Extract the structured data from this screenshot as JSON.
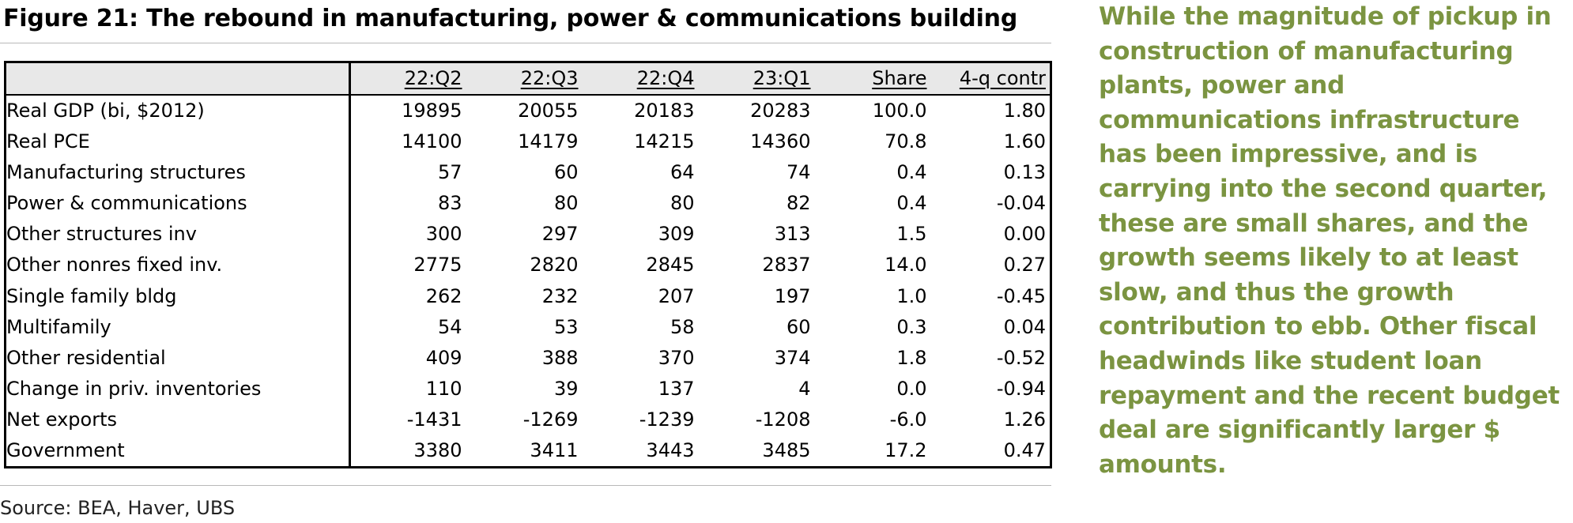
{
  "figure": {
    "title": "Figure 21: The rebound in manufacturing, power & communications building",
    "source": "Source: BEA, Haver, UBS"
  },
  "table": {
    "columns": [
      "22:Q2",
      "22:Q3",
      "22:Q4",
      "23:Q1",
      "Share",
      "4-q contr"
    ],
    "rows": [
      {
        "label": "Real GDP (bi, $2012)",
        "level": 0,
        "values": [
          "19895",
          "20055",
          "20183",
          "20283",
          "100.0",
          "1.80"
        ]
      },
      {
        "label": "Real PCE",
        "level": 1,
        "values": [
          "14100",
          "14179",
          "14215",
          "14360",
          "70.8",
          "1.60"
        ]
      },
      {
        "label": "Manufacturing structures",
        "level": 3,
        "values": [
          "57",
          "60",
          "64",
          "74",
          "0.4",
          "0.13"
        ]
      },
      {
        "label": "Power & communications",
        "level": 3,
        "values": [
          "83",
          "80",
          "80",
          "82",
          "0.4",
          "-0.04"
        ]
      },
      {
        "label": "Other structures inv",
        "level": 3,
        "values": [
          "300",
          "297",
          "309",
          "313",
          "1.5",
          "0.00"
        ]
      },
      {
        "label": "Other nonres fixed inv.",
        "level": 2,
        "values": [
          "2775",
          "2820",
          "2845",
          "2837",
          "14.0",
          "0.27"
        ]
      },
      {
        "label": "Single family bldg",
        "level": 2,
        "values": [
          "262",
          "232",
          "207",
          "197",
          "1.0",
          "-0.45"
        ]
      },
      {
        "label": "Multifamily",
        "level": 2,
        "values": [
          "54",
          "53",
          "58",
          "60",
          "0.3",
          "0.04"
        ]
      },
      {
        "label": "Other residential",
        "level": 2,
        "values": [
          "409",
          "388",
          "370",
          "374",
          "1.8",
          "-0.52"
        ]
      },
      {
        "label": "Change in priv. inventories",
        "level": 1,
        "values": [
          "110",
          "39",
          "137",
          "4",
          "0.0",
          "-0.94"
        ]
      },
      {
        "label": "Net exports",
        "level": 1,
        "values": [
          "-1431",
          "-1269",
          "-1239",
          "-1208",
          "-6.0",
          "1.26"
        ]
      },
      {
        "label": "Government",
        "level": 1,
        "values": [
          "3380",
          "3411",
          "3443",
          "3485",
          "17.2",
          "0.47"
        ]
      }
    ]
  },
  "commentary": {
    "text": "While the magnitude of pickup in construction of manufacturing plants, power and communications infrastructure has been impressive, and is carrying into the second quarter, these are small shares, and the growth seems likely to at least slow, and thus the growth contribution to ebb. Other fiscal headwinds like student loan repayment and the recent budget deal are significantly larger $ amounts.",
    "color": "#7b9441"
  }
}
